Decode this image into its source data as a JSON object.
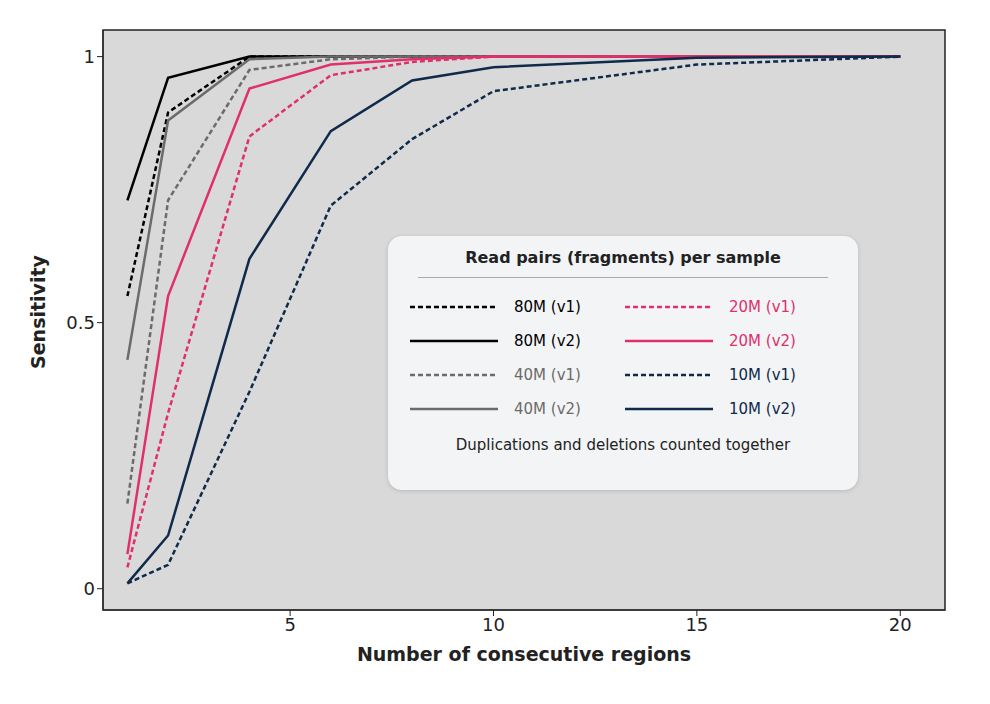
{
  "chart_data": {
    "type": "line",
    "x_label": "Number of consecutive regions",
    "y_label": "Sensitivity",
    "legend_title": "Read pairs (fragments) per sample",
    "annotations": [
      "Duplications and deletions counted together"
    ],
    "x": [
      1,
      2,
      4,
      6,
      8,
      10,
      15,
      20
    ],
    "xlim": [
      0.4,
      21.1
    ],
    "xticks": [
      5,
      10,
      15,
      20
    ],
    "ylim": [
      -0.04,
      1.05
    ],
    "yticks": [
      0,
      0.5,
      1
    ],
    "grid": true,
    "legend": "right",
    "series": [
      {
        "name": "80M (v1)",
        "color": "#000000",
        "line_style": "dashed",
        "values": [
          0.55,
          0.895,
          1.0,
          1.0,
          1.0,
          1.0,
          1.0,
          1.0
        ]
      },
      {
        "name": "80M (v2)",
        "color": "#000000",
        "line_style": "solid",
        "values": [
          0.73,
          0.96,
          1.0,
          1.0,
          1.0,
          1.0,
          1.0,
          1.0
        ]
      },
      {
        "name": "40M (v1)",
        "color": "#6b6b6b",
        "line_style": "dashed",
        "values": [
          0.16,
          0.73,
          0.975,
          0.995,
          1.0,
          1.0,
          1.0,
          1.0
        ]
      },
      {
        "name": "40M (v2)",
        "color": "#6b6b6b",
        "line_style": "solid",
        "values": [
          0.43,
          0.88,
          0.995,
          1.0,
          1.0,
          1.0,
          1.0,
          1.0
        ]
      },
      {
        "name": "20M (v1)",
        "color": "#e0306a",
        "line_style": "dashed",
        "values": [
          0.04,
          0.33,
          0.85,
          0.965,
          0.99,
          1.0,
          1.0,
          1.0
        ]
      },
      {
        "name": "20M (v2)",
        "color": "#e0306a",
        "line_style": "solid",
        "values": [
          0.065,
          0.55,
          0.94,
          0.985,
          0.995,
          1.0,
          1.0,
          1.0
        ]
      },
      {
        "name": "10M (v1)",
        "color": "#0f2a4a",
        "line_style": "dashed",
        "values": [
          0.01,
          0.045,
          0.37,
          0.72,
          0.845,
          0.935,
          0.985,
          1.0
        ]
      },
      {
        "name": "10M (v2)",
        "color": "#0f2a4a",
        "line_style": "solid",
        "values": [
          0.01,
          0.1,
          0.62,
          0.86,
          0.955,
          0.98,
          0.998,
          1.0
        ]
      }
    ]
  }
}
